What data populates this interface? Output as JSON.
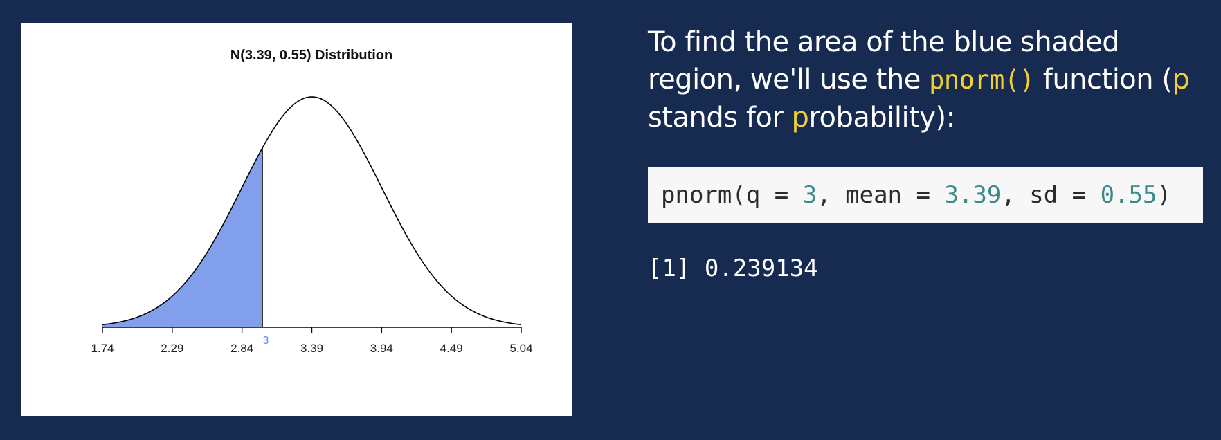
{
  "plot": {
    "title": "N(3.39, 0.55) Distribution"
  },
  "chart_data": {
    "type": "area",
    "title": "N(3.39, 0.55) Distribution",
    "distribution": "normal",
    "mean": 3.39,
    "sd": 0.55,
    "x_ticks": [
      "1.74",
      "2.29",
      "2.84",
      "3.39",
      "3.94",
      "4.49",
      "5.04"
    ],
    "xlim": [
      1.74,
      5.04
    ],
    "shaded_region": {
      "from": 1.74,
      "to": 3,
      "color": "#829fec"
    },
    "cutoff_label": "3",
    "cutoff_label_color": "#6b8fe0",
    "grid": false
  },
  "explanation": {
    "part1": "To find the area of the blue shaded region, we'll use the ",
    "func": "pnorm()",
    "part2": " function (",
    "p1": "p",
    "part3": " stands for ",
    "p2": "p",
    "part4": "robability):"
  },
  "code": {
    "t1": "pnorm(q = ",
    "n1": "3",
    "t2": ", mean = ",
    "n2": "3.39",
    "t3": ", sd = ",
    "n3": "0.55",
    "t4": ")"
  },
  "output": {
    "result": "[1] 0.239134"
  },
  "colors": {
    "background": "#172a50",
    "highlight": "#f2cf32",
    "code_number": "#3a8a8a",
    "shade": "#829fec"
  }
}
